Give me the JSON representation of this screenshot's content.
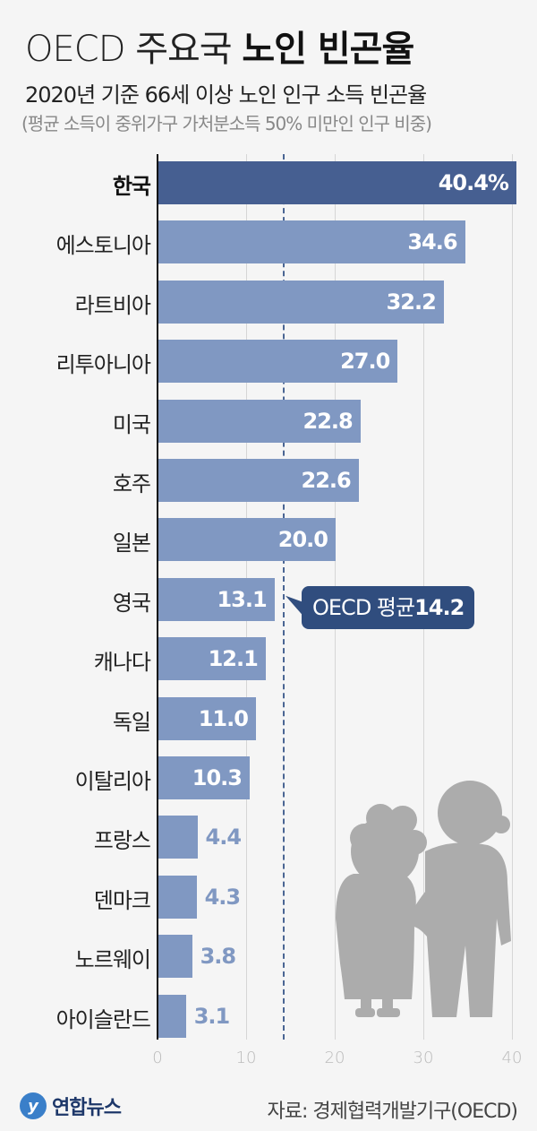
{
  "header": {
    "title_light": "OECD 주요국",
    "title_bold": "노인 빈곤율",
    "subtitle": "2020년 기준 66세 이상 노인 인구 소득 빈곤율",
    "note": "(평균 소득이 중위가구 가처분소득 50% 미만인 인구 비중)"
  },
  "callout": {
    "label": "OECD 평균",
    "value": "14.2"
  },
  "footer": {
    "logo_text": "연합뉴스",
    "source": "자료: 경제협력개발기구(OECD)"
  },
  "colors": {
    "highlight_bar": "#465f91",
    "bar": "#8098c2",
    "callout": "#304d7e",
    "background": "#f5f5f5"
  },
  "chart_data": {
    "type": "bar",
    "orientation": "horizontal",
    "title": "OECD 주요국 노인 빈곤율",
    "subtitle": "2020년 기준 66세 이상 노인 인구 소득 빈곤율",
    "categories": [
      "한국",
      "에스토니아",
      "라트비아",
      "리투아니아",
      "미국",
      "호주",
      "일본",
      "영국",
      "캐나다",
      "독일",
      "이탈리아",
      "프랑스",
      "덴마크",
      "노르웨이",
      "아이슬란드"
    ],
    "values": [
      40.4,
      34.6,
      32.2,
      27.0,
      22.8,
      22.6,
      20.0,
      13.1,
      12.1,
      11.0,
      10.3,
      4.4,
      4.3,
      3.8,
      3.1
    ],
    "value_labels": [
      "40.4%",
      "34.6",
      "32.2",
      "27.0",
      "22.8",
      "22.6",
      "20.0",
      "13.1",
      "12.1",
      "11.0",
      "10.3",
      "4.4",
      "4.3",
      "3.8",
      "3.1"
    ],
    "highlight": "한국",
    "reference_line": {
      "label": "OECD 평균",
      "value": 14.2
    },
    "xlim": [
      0,
      40
    ],
    "xticks": [
      "0",
      "10",
      "20",
      "30",
      "40"
    ],
    "grid": true,
    "unit": "%",
    "source": "경제협력개발기구(OECD)"
  }
}
